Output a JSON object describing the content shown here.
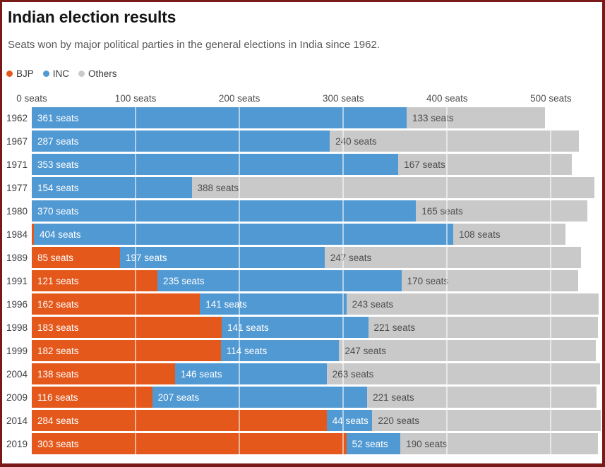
{
  "page": {
    "title": "Indian election results",
    "subtitle": "Seats won by major political parties in the general elections in India since 1962.",
    "border_color": "#7a1a18",
    "background": "#ffffff"
  },
  "legend": {
    "items": [
      {
        "label": "BJP",
        "color": "#e4581c"
      },
      {
        "label": "INC",
        "color": "#5199d3"
      },
      {
        "label": "Others",
        "color": "#c9c9c9"
      }
    ]
  },
  "axis": {
    "max_seats": 548,
    "ticks": [
      {
        "label": "0 seats",
        "value": 0
      },
      {
        "label": "100 seats",
        "value": 100
      },
      {
        "label": "200 seats",
        "value": 200
      },
      {
        "label": "300 seats",
        "value": 300
      },
      {
        "label": "400 seats",
        "value": 400
      },
      {
        "label": "500 seats",
        "value": 500
      }
    ]
  },
  "chart_data": {
    "type": "bar",
    "orientation": "horizontal",
    "stacked": true,
    "unit": "seats",
    "title": "Indian election results",
    "subtitle": "Seats won by major political parties in the general elections in India since 1962.",
    "legend_position": "top-left",
    "xlim": [
      0,
      548
    ],
    "gridlines": [
      100,
      200,
      300,
      400,
      500
    ],
    "grid_color_over_bars": "rgba(255,255,255,0.55)",
    "categories": [
      "1962",
      "1967",
      "1971",
      "1977",
      "1980",
      "1984",
      "1989",
      "1991",
      "1996",
      "1998",
      "1999",
      "2004",
      "2009",
      "2014",
      "2019"
    ],
    "series": [
      {
        "name": "BJP",
        "color": "#e4581c",
        "values": [
          0,
          0,
          0,
          0,
          0,
          2,
          85,
          121,
          162,
          183,
          182,
          138,
          116,
          284,
          303
        ]
      },
      {
        "name": "INC",
        "color": "#5199d3",
        "values": [
          361,
          287,
          353,
          154,
          370,
          404,
          197,
          235,
          141,
          141,
          114,
          146,
          207,
          44,
          52
        ]
      },
      {
        "name": "Others",
        "color": "#c9c9c9",
        "values": [
          133,
          240,
          167,
          388,
          165,
          108,
          247,
          170,
          243,
          221,
          247,
          263,
          221,
          220,
          190
        ]
      }
    ],
    "rows": [
      {
        "year": "1962",
        "segments": [
          {
            "party": "INC",
            "seats": 361,
            "label": "361 seats"
          },
          {
            "party": "Others",
            "seats": 133,
            "label": "133 seats"
          }
        ]
      },
      {
        "year": "1967",
        "segments": [
          {
            "party": "INC",
            "seats": 287,
            "label": "287 seats"
          },
          {
            "party": "Others",
            "seats": 240,
            "label": "240 seats"
          }
        ]
      },
      {
        "year": "1971",
        "segments": [
          {
            "party": "INC",
            "seats": 353,
            "label": "353 seats"
          },
          {
            "party": "Others",
            "seats": 167,
            "label": "167 seats"
          }
        ]
      },
      {
        "year": "1977",
        "segments": [
          {
            "party": "INC",
            "seats": 154,
            "label": "154 seats"
          },
          {
            "party": "Others",
            "seats": 388,
            "label": "388 seats"
          }
        ]
      },
      {
        "year": "1980",
        "segments": [
          {
            "party": "INC",
            "seats": 370,
            "label": "370 seats"
          },
          {
            "party": "Others",
            "seats": 165,
            "label": "165 seats"
          }
        ]
      },
      {
        "year": "1984",
        "segments": [
          {
            "party": "BJP",
            "seats": 2,
            "label": ""
          },
          {
            "party": "INC",
            "seats": 404,
            "label": "404 seats"
          },
          {
            "party": "Others",
            "seats": 108,
            "label": "108 seats"
          }
        ]
      },
      {
        "year": "1989",
        "segments": [
          {
            "party": "BJP",
            "seats": 85,
            "label": "85 seats"
          },
          {
            "party": "INC",
            "seats": 197,
            "label": "197 seats"
          },
          {
            "party": "Others",
            "seats": 247,
            "label": "247 seats"
          }
        ]
      },
      {
        "year": "1991",
        "segments": [
          {
            "party": "BJP",
            "seats": 121,
            "label": "121 seats"
          },
          {
            "party": "INC",
            "seats": 235,
            "label": "235 seats"
          },
          {
            "party": "Others",
            "seats": 170,
            "label": "170 seats"
          }
        ]
      },
      {
        "year": "1996",
        "segments": [
          {
            "party": "BJP",
            "seats": 162,
            "label": "162 seats"
          },
          {
            "party": "INC",
            "seats": 141,
            "label": "141 seats"
          },
          {
            "party": "Others",
            "seats": 243,
            "label": "243 seats"
          }
        ]
      },
      {
        "year": "1998",
        "segments": [
          {
            "party": "BJP",
            "seats": 183,
            "label": "183 seats"
          },
          {
            "party": "INC",
            "seats": 141,
            "label": "141 seats"
          },
          {
            "party": "Others",
            "seats": 221,
            "label": "221 seats"
          }
        ]
      },
      {
        "year": "1999",
        "segments": [
          {
            "party": "BJP",
            "seats": 182,
            "label": "182 seats"
          },
          {
            "party": "INC",
            "seats": 114,
            "label": "114 seats"
          },
          {
            "party": "Others",
            "seats": 247,
            "label": "247 seats"
          }
        ]
      },
      {
        "year": "2004",
        "segments": [
          {
            "party": "BJP",
            "seats": 138,
            "label": "138 seats"
          },
          {
            "party": "INC",
            "seats": 146,
            "label": "146 seats"
          },
          {
            "party": "Others",
            "seats": 263,
            "label": "263 seats"
          }
        ]
      },
      {
        "year": "2009",
        "segments": [
          {
            "party": "BJP",
            "seats": 116,
            "label": "116 seats"
          },
          {
            "party": "INC",
            "seats": 207,
            "label": "207 seats"
          },
          {
            "party": "Others",
            "seats": 221,
            "label": "221 seats"
          }
        ]
      },
      {
        "year": "2014",
        "segments": [
          {
            "party": "BJP",
            "seats": 284,
            "label": "284 seats"
          },
          {
            "party": "INC",
            "seats": 44,
            "label": "44 seats"
          },
          {
            "party": "Others",
            "seats": 220,
            "label": "220 seats"
          }
        ]
      },
      {
        "year": "2019",
        "segments": [
          {
            "party": "BJP",
            "seats": 303,
            "label": "303 seats"
          },
          {
            "party": "INC",
            "seats": 52,
            "label": "52 seats"
          },
          {
            "party": "Others",
            "seats": 190,
            "label": "190 seats"
          }
        ]
      }
    ]
  }
}
